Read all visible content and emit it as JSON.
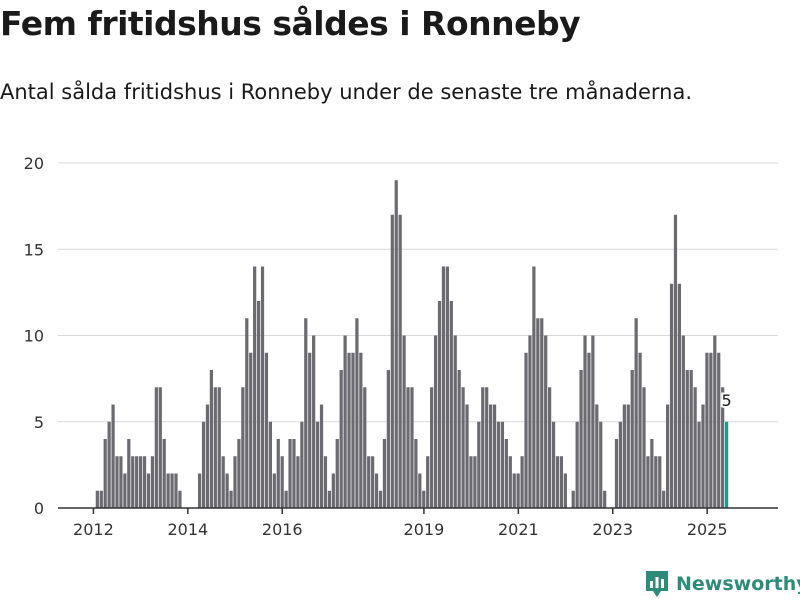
{
  "title": "Fem fritidshus såldes i Ronneby",
  "subtitle": "Antal sålda fritidshus i Ronneby under de senaste tre månaderna.",
  "brand": {
    "name": "Newsworthy",
    "icon": "bar-chart-pin-icon",
    "color": "#2e8b7a"
  },
  "colors": {
    "bar": "#6b6a70",
    "highlight": "#1a9c8c",
    "grid": "#d9d9d9",
    "axis": "#333333"
  },
  "chart_data": {
    "type": "bar",
    "title": "Fem fritidshus såldes i Ronneby",
    "subtitle": "Antal sålda fritidshus i Ronneby under de senaste tre månaderna.",
    "xlabel": "",
    "ylabel": "",
    "ylim": [
      0,
      20
    ],
    "y_ticks": [
      "0",
      "5",
      "10",
      "15",
      "20"
    ],
    "x_ticks": [
      {
        "label": "2012",
        "x": 2012.0
      },
      {
        "label": "2014",
        "x": 2014.0
      },
      {
        "label": "2016",
        "x": 2016.0
      },
      {
        "label": "2019",
        "x": 2019.0
      },
      {
        "label": "2021",
        "x": 2021.0
      },
      {
        "label": "2023",
        "x": 2023.0
      },
      {
        "label": "2025",
        "x": 2025.0
      }
    ],
    "x_range": [
      2011.25,
      2026.5
    ],
    "grid": true,
    "first_period": 2012.0833,
    "period_step": 0.0833,
    "values": [
      1,
      1,
      4,
      5,
      6,
      3,
      3,
      2,
      4,
      3,
      3,
      3,
      3,
      2,
      3,
      7,
      7,
      4,
      2,
      2,
      2,
      1,
      0,
      0,
      0,
      0,
      2,
      5,
      6,
      8,
      7,
      7,
      3,
      2,
      1,
      3,
      4,
      7,
      11,
      9,
      14,
      12,
      14,
      9,
      5,
      2,
      4,
      3,
      1,
      4,
      4,
      3,
      5,
      11,
      9,
      10,
      5,
      6,
      3,
      1,
      2,
      4,
      8,
      10,
      9,
      9,
      11,
      9,
      7,
      3,
      3,
      2,
      1,
      4,
      8,
      17,
      19,
      17,
      10,
      7,
      7,
      4,
      2,
      1,
      3,
      7,
      10,
      12,
      14,
      14,
      12,
      10,
      8,
      7,
      6,
      3,
      3,
      5,
      7,
      7,
      6,
      6,
      5,
      5,
      4,
      3,
      2,
      2,
      3,
      9,
      10,
      14,
      11,
      11,
      10,
      7,
      5,
      3,
      3,
      2,
      0,
      1,
      5,
      8,
      10,
      9,
      10,
      6,
      5,
      1,
      0,
      0,
      4,
      5,
      6,
      6,
      8,
      11,
      9,
      7,
      3,
      4,
      3,
      3,
      1,
      6,
      13,
      17,
      13,
      10,
      8,
      8,
      7,
      5,
      6,
      9,
      9,
      10,
      9,
      7,
      5
    ],
    "highlight_last": true,
    "last_label": "5"
  }
}
